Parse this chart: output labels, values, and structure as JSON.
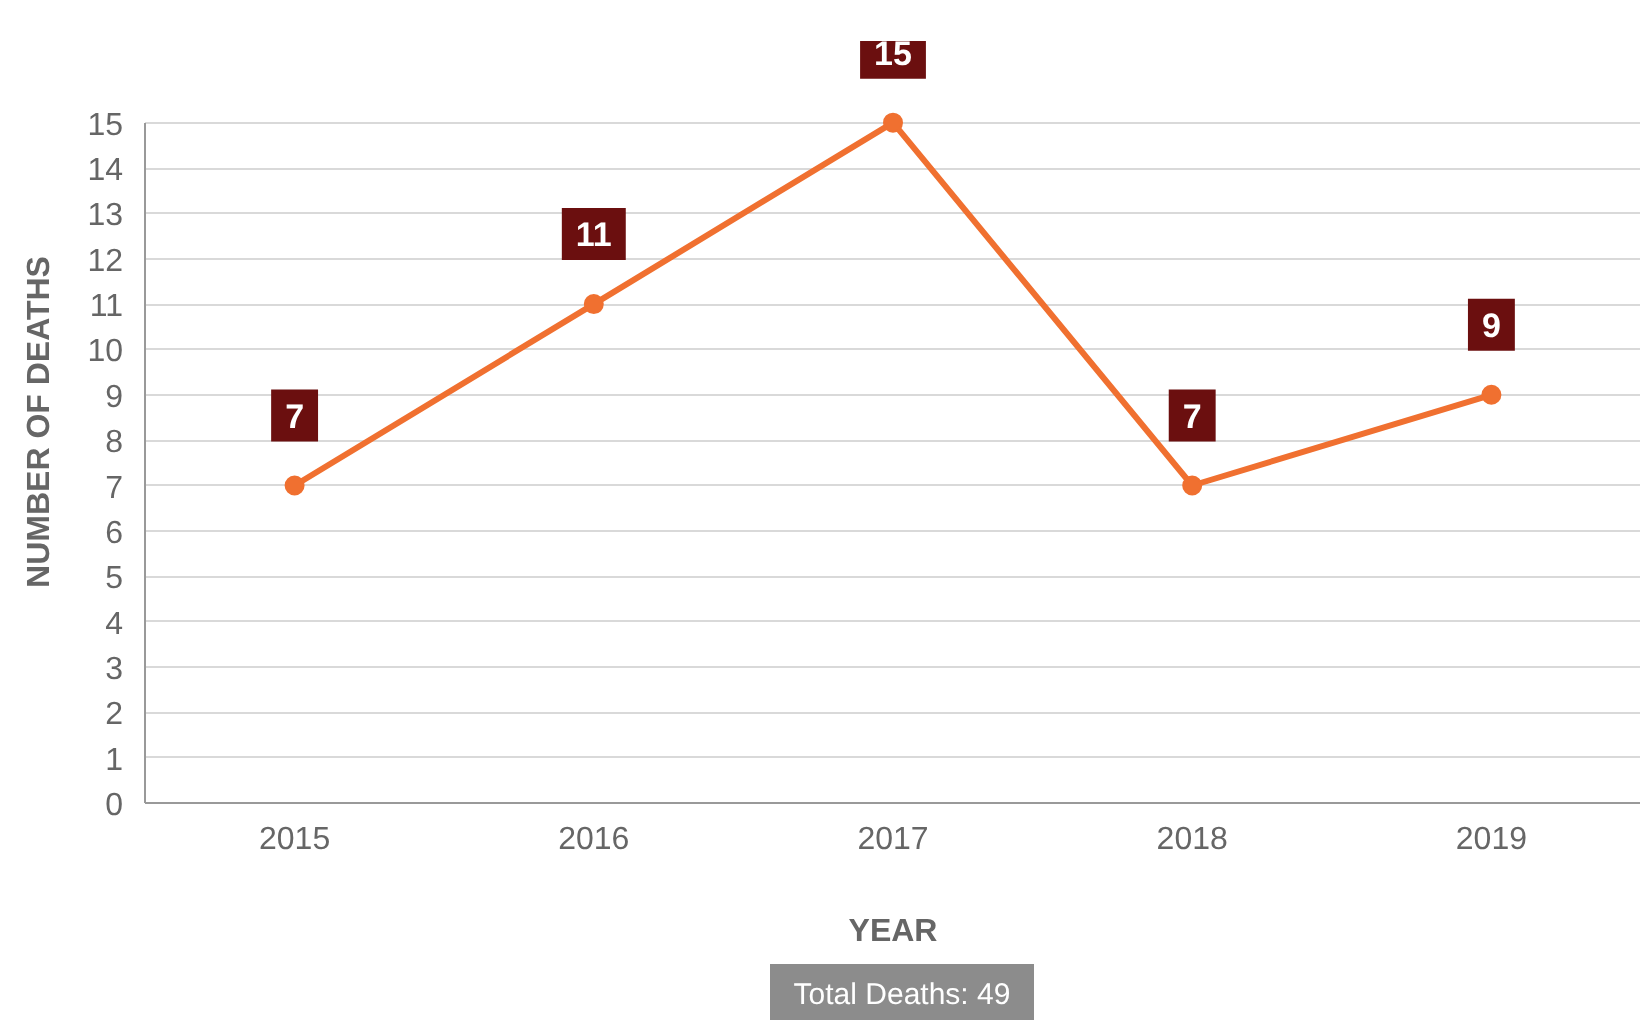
{
  "chart_data": {
    "type": "line",
    "xlabel": "YEAR",
    "ylabel": "NUMBER OF DEATHS",
    "categories": [
      "2015",
      "2016",
      "2017",
      "2018",
      "2019"
    ],
    "values": [
      7,
      11,
      15,
      7,
      9
    ],
    "color": "#f07030",
    "ylim": [
      0,
      15
    ],
    "yticks": [
      0,
      1,
      2,
      3,
      4,
      5,
      6,
      7,
      8,
      9,
      10,
      11,
      12,
      13,
      14,
      15
    ],
    "grid": "y",
    "marker": "circle",
    "line_style": "solid",
    "data_labels": true,
    "annotations": [
      "Total Deaths: 49"
    ]
  }
}
